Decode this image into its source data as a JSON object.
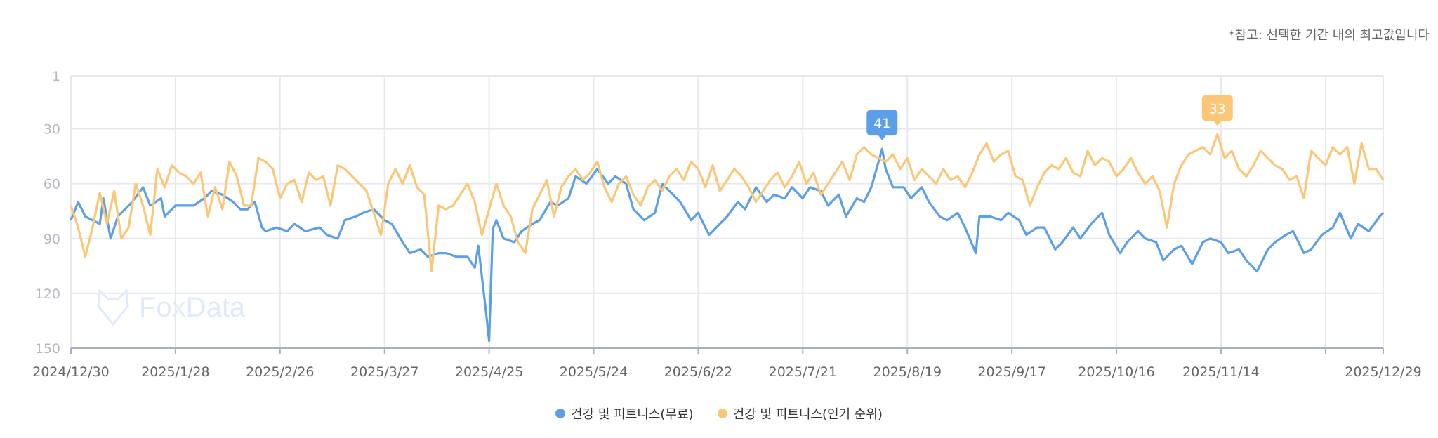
{
  "note": "*참고: 선택한 기간 내의 최고값입니다",
  "watermark": "FoxData",
  "colors": {
    "free": "#5B9FE8",
    "popular": "#FBC777",
    "grid": "#E6E8EE",
    "axis": "#A9B0C4"
  },
  "chart_data": {
    "type": "line",
    "title": "",
    "xlabel": "",
    "ylabel": "",
    "y_reversed": true,
    "ylim": [
      1,
      150
    ],
    "y_ticks": [
      "1",
      "30",
      "60",
      "90",
      "120",
      "150"
    ],
    "y_tick_values": [
      1,
      30,
      60,
      90,
      120,
      150
    ],
    "x_start": "2024/12/30",
    "x_range_days": [
      0,
      364
    ],
    "x_tick_days": [
      0,
      29,
      58,
      87,
      116,
      145,
      174,
      203,
      232,
      261,
      290,
      319,
      348,
      364
    ],
    "x_tick_labels": [
      "2024/12/30",
      "2025/1/28",
      "2025/2/26",
      "2025/3/27",
      "2025/4/25",
      "2025/5/24",
      "2025/6/22",
      "2025/7/21",
      "2025/8/19",
      "2025/9/17",
      "2025/10/16",
      "2025/11/14",
      "",
      "2025/12/29"
    ],
    "grid": true,
    "legend_placement": "bottom-center",
    "series": [
      {
        "name": "건강 및 피트니스(무료)",
        "color": "#5B9FE8",
        "peak": {
          "day": 225,
          "label": "41"
        },
        "x": [
          0,
          2,
          4,
          6,
          8,
          9,
          11,
          13,
          15,
          17,
          20,
          22,
          25,
          26,
          29,
          31,
          34,
          37,
          39,
          42,
          45,
          47,
          49,
          51,
          53,
          54,
          57,
          60,
          62,
          65,
          69,
          71,
          74,
          76,
          79,
          81,
          84,
          87,
          89,
          92,
          94,
          97,
          99,
          102,
          104,
          107,
          110,
          112,
          113,
          115,
          116,
          117,
          118,
          120,
          123,
          125,
          128,
          130,
          133,
          135,
          138,
          140,
          143,
          146,
          149,
          151,
          154,
          156,
          159,
          162,
          164,
          167,
          169,
          172,
          174,
          177,
          180,
          182,
          185,
          187,
          190,
          193,
          195,
          198,
          200,
          203,
          205,
          208,
          210,
          213,
          215,
          218,
          220,
          222,
          224,
          225,
          226,
          228,
          231,
          233,
          236,
          238,
          241,
          243,
          246,
          248,
          251,
          252,
          255,
          258,
          260,
          263,
          265,
          268,
          270,
          273,
          275,
          278,
          280,
          283,
          286,
          288,
          291,
          293,
          296,
          298,
          301,
          303,
          306,
          308,
          311,
          314,
          316,
          319,
          321,
          324,
          326,
          329,
          332,
          334,
          337,
          339,
          342,
          344,
          347,
          350,
          352,
          355,
          357,
          360,
          363,
          364
        ],
        "values": [
          80,
          70,
          78,
          80,
          82,
          68,
          90,
          78,
          74,
          70,
          62,
          72,
          68,
          78,
          72,
          72,
          72,
          68,
          64,
          66,
          70,
          74,
          74,
          70,
          84,
          86,
          84,
          86,
          82,
          86,
          84,
          88,
          90,
          80,
          78,
          76,
          74,
          80,
          82,
          92,
          98,
          96,
          100,
          98,
          98,
          100,
          100,
          106,
          94,
          128,
          146,
          85,
          80,
          90,
          92,
          86,
          82,
          80,
          70,
          72,
          68,
          56,
          60,
          52,
          60,
          56,
          60,
          74,
          80,
          76,
          60,
          66,
          70,
          80,
          76,
          88,
          82,
          78,
          70,
          74,
          62,
          70,
          66,
          68,
          62,
          68,
          62,
          64,
          72,
          66,
          78,
          68,
          70,
          62,
          48,
          41,
          52,
          62,
          62,
          68,
          62,
          70,
          78,
          80,
          76,
          84,
          98,
          78,
          78,
          80,
          76,
          80,
          88,
          84,
          84,
          96,
          92,
          84,
          90,
          82,
          76,
          88,
          98,
          92,
          86,
          90,
          92,
          102,
          96,
          94,
          104,
          92,
          90,
          92,
          98,
          96,
          102,
          108,
          96,
          92,
          88,
          86,
          98,
          96,
          88,
          84,
          76,
          90,
          82,
          86,
          78,
          76
        ]
      },
      {
        "name": "건강 및 피트니스(인기 순위)",
        "color": "#FBC777",
        "peak": {
          "day": 318,
          "label": "33"
        },
        "x": [
          0,
          2,
          4,
          6,
          8,
          10,
          12,
          14,
          16,
          18,
          20,
          22,
          24,
          26,
          28,
          30,
          32,
          34,
          36,
          38,
          40,
          42,
          44,
          46,
          48,
          50,
          52,
          54,
          56,
          58,
          60,
          62,
          64,
          66,
          68,
          70,
          72,
          74,
          76,
          78,
          80,
          82,
          84,
          86,
          88,
          90,
          92,
          94,
          96,
          98,
          100,
          102,
          104,
          106,
          108,
          110,
          112,
          114,
          116,
          118,
          120,
          122,
          124,
          126,
          128,
          130,
          132,
          134,
          136,
          138,
          140,
          142,
          144,
          146,
          148,
          150,
          152,
          154,
          156,
          158,
          160,
          162,
          164,
          166,
          168,
          170,
          172,
          174,
          176,
          178,
          180,
          182,
          184,
          186,
          188,
          190,
          192,
          194,
          196,
          198,
          200,
          202,
          204,
          206,
          208,
          210,
          212,
          214,
          216,
          218,
          220,
          222,
          224,
          226,
          228,
          230,
          232,
          234,
          236,
          238,
          240,
          242,
          244,
          246,
          248,
          250,
          252,
          254,
          256,
          258,
          260,
          262,
          264,
          266,
          268,
          270,
          272,
          274,
          276,
          278,
          280,
          282,
          284,
          286,
          288,
          290,
          292,
          294,
          296,
          298,
          300,
          302,
          304,
          306,
          308,
          310,
          312,
          314,
          316,
          318,
          320,
          322,
          324,
          326,
          328,
          330,
          332,
          334,
          336,
          338,
          340,
          342,
          344,
          346,
          348,
          350,
          352,
          354,
          356,
          358,
          360,
          362,
          364
        ],
        "values": [
          72,
          84,
          100,
          84,
          65,
          82,
          64,
          90,
          84,
          60,
          72,
          88,
          52,
          62,
          50,
          54,
          56,
          60,
          54,
          78,
          62,
          74,
          48,
          56,
          72,
          72,
          46,
          48,
          52,
          68,
          60,
          58,
          70,
          54,
          58,
          56,
          72,
          50,
          52,
          56,
          60,
          64,
          76,
          88,
          60,
          52,
          60,
          50,
          62,
          66,
          108,
          72,
          74,
          72,
          66,
          60,
          70,
          88,
          74,
          60,
          72,
          78,
          92,
          98,
          74,
          66,
          58,
          78,
          62,
          56,
          52,
          58,
          54,
          48,
          62,
          70,
          60,
          56,
          66,
          72,
          62,
          58,
          64,
          56,
          52,
          58,
          48,
          52,
          62,
          50,
          64,
          58,
          52,
          56,
          62,
          70,
          64,
          58,
          54,
          62,
          56,
          48,
          60,
          54,
          66,
          60,
          54,
          48,
          58,
          44,
          40,
          44,
          46,
          48,
          44,
          52,
          46,
          58,
          52,
          56,
          60,
          52,
          58,
          56,
          62,
          54,
          44,
          38,
          48,
          44,
          42,
          56,
          58,
          72,
          62,
          54,
          50,
          52,
          46,
          54,
          56,
          42,
          50,
          46,
          48,
          56,
          52,
          46,
          54,
          60,
          56,
          64,
          84,
          60,
          50,
          44,
          42,
          40,
          44,
          33,
          46,
          42,
          52,
          56,
          50,
          42,
          46,
          50,
          52,
          58,
          56,
          68,
          42,
          46,
          50,
          40,
          44,
          40,
          60,
          38,
          52,
          52,
          58
        ]
      }
    ]
  }
}
